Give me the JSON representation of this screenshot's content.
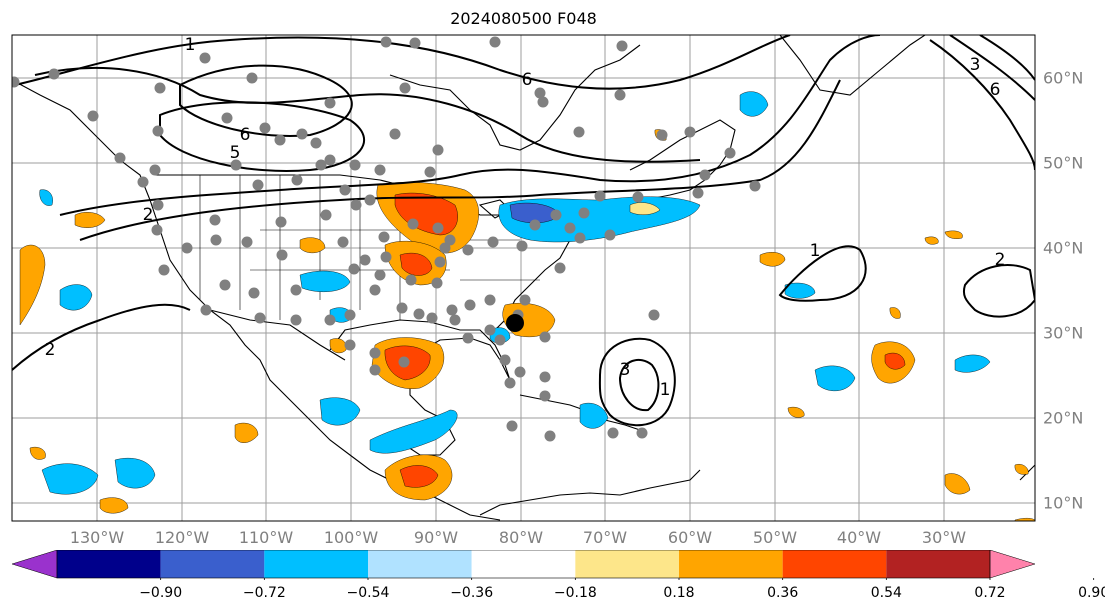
{
  "title": "2024080500 F048",
  "lon_labels": [
    "130°W",
    "120°W",
    "110°W",
    "100°W",
    "90°W",
    "80°W",
    "70°W",
    "60°W",
    "50°W",
    "40°W",
    "30°W"
  ],
  "lat_labels": [
    "60°N",
    "50°N",
    "40°N",
    "30°N",
    "20°N",
    "10°N"
  ],
  "contour_labels": [
    "1",
    "6",
    "5",
    "2",
    "2",
    "6",
    "3",
    "1",
    "1",
    "2",
    "3",
    "6"
  ],
  "colorbar": {
    "ticks": [
      "−0.90",
      "−0.72",
      "−0.54",
      "−0.36",
      "−0.18",
      "0.18",
      "0.36",
      "0.54",
      "0.72",
      "0.90"
    ],
    "colors": [
      "#9a32cd",
      "#00008b",
      "#3a5fcd",
      "#00bfff",
      "#b0e2ff",
      "#ffffff",
      "#fde68a",
      "#ffa500",
      "#ff4500",
      "#b22222",
      "#ff82ab"
    ]
  },
  "colors": {
    "grid": "#9e9e9e",
    "marker": "#808080",
    "orange": "#ffa500",
    "red_orange": "#ff4500",
    "light_orange": "#fde68a",
    "sky_blue": "#00bfff",
    "royal_blue": "#3a5fcd"
  }
}
